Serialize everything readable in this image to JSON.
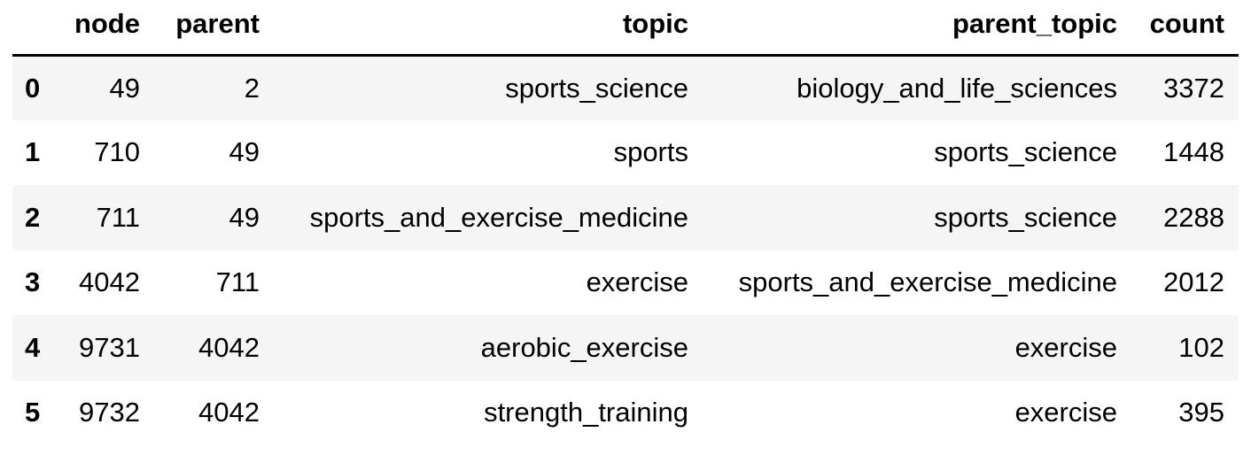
{
  "table": {
    "index_header": "",
    "columns": [
      "node",
      "parent",
      "topic",
      "parent_topic",
      "count"
    ],
    "rows": [
      {
        "index": "0",
        "node": "49",
        "parent": "2",
        "topic": "sports_science",
        "parent_topic": "biology_and_life_sciences",
        "count": "3372"
      },
      {
        "index": "1",
        "node": "710",
        "parent": "49",
        "topic": "sports",
        "parent_topic": "sports_science",
        "count": "1448"
      },
      {
        "index": "2",
        "node": "711",
        "parent": "49",
        "topic": "sports_and_exercise_medicine",
        "parent_topic": "sports_science",
        "count": "2288"
      },
      {
        "index": "3",
        "node": "4042",
        "parent": "711",
        "topic": "exercise",
        "parent_topic": "sports_and_exercise_medicine",
        "count": "2012"
      },
      {
        "index": "4",
        "node": "9731",
        "parent": "4042",
        "topic": "aerobic_exercise",
        "parent_topic": "exercise",
        "count": "102"
      },
      {
        "index": "5",
        "node": "9732",
        "parent": "4042",
        "topic": "strength_training",
        "parent_topic": "exercise",
        "count": "395"
      }
    ]
  },
  "colors": {
    "stripe": "#f5f5f5",
    "background": "#ffffff",
    "text": "#000000"
  }
}
